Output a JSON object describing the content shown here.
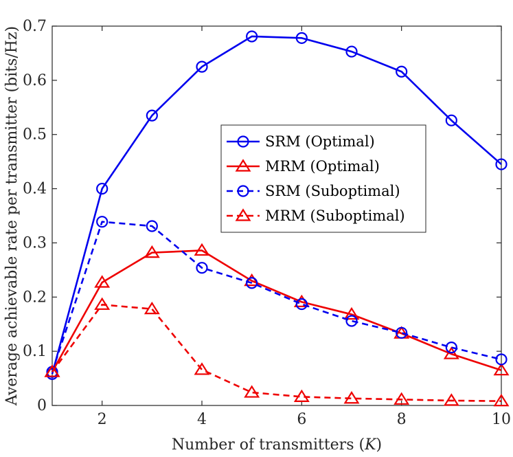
{
  "chart_data": {
    "type": "line",
    "title": "",
    "xlabel": "Number of transmitters",
    "xlabel_var": "K",
    "ylabel": "Average achievable rate per transmitter (bits/Hz)",
    "xlim": [
      1,
      10
    ],
    "ylim": [
      0,
      0.7
    ],
    "xticks": [
      2,
      4,
      6,
      8,
      10
    ],
    "yticks": [
      0,
      0.1,
      0.2,
      0.3,
      0.4,
      0.5,
      0.6,
      0.7
    ],
    "ytick_labels": [
      "0",
      "0.1",
      "0.2",
      "0.3",
      "0.4",
      "0.5",
      "0.6",
      "0.7"
    ],
    "grid": false,
    "legend_position": "center-right",
    "x": [
      1,
      2,
      3,
      4,
      5,
      6,
      7,
      8,
      9,
      10
    ],
    "series": [
      {
        "name": "SRM (Optimal)",
        "color": "#0000ee",
        "dash": "solid",
        "marker": "circle",
        "values": [
          0.058,
          0.4,
          0.535,
          0.625,
          0.681,
          0.678,
          0.653,
          0.616,
          0.526,
          0.445
        ]
      },
      {
        "name": "MRM (Optimal)",
        "color": "#ee0000",
        "dash": "solid",
        "marker": "triangle",
        "values": [
          0.062,
          0.227,
          0.282,
          0.286,
          0.23,
          0.191,
          0.168,
          0.133,
          0.095,
          0.065
        ]
      },
      {
        "name": "SRM (Suboptimal)",
        "color": "#0000ee",
        "dash": "dashed",
        "marker": "circle",
        "values": [
          0.062,
          0.339,
          0.331,
          0.254,
          0.226,
          0.187,
          0.156,
          0.134,
          0.107,
          0.085
        ]
      },
      {
        "name": "MRM (Suboptimal)",
        "color": "#ee0000",
        "dash": "dashed",
        "marker": "triangle",
        "values": [
          0.062,
          0.186,
          0.178,
          0.066,
          0.024,
          0.016,
          0.013,
          0.011,
          0.009,
          0.008
        ]
      }
    ]
  }
}
